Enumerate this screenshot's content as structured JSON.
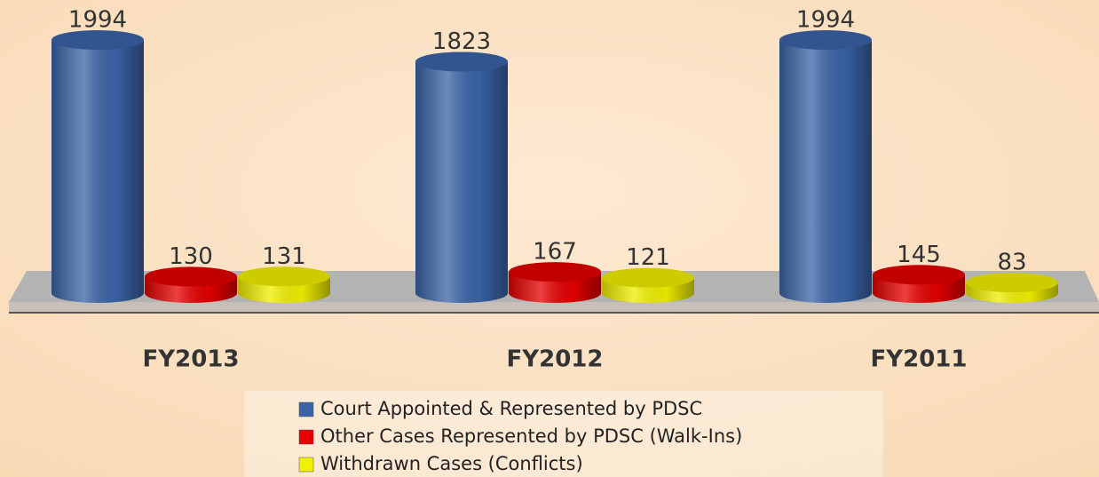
{
  "chart_data": {
    "type": "bar",
    "categories": [
      "FY2013",
      "FY2012",
      "FY2011"
    ],
    "series": [
      {
        "name": "Court Appointed & Represented by PDSC",
        "color": "#3b64a8",
        "values": [
          1994,
          1823,
          1994
        ]
      },
      {
        "name": "Other Cases Represented by PDSC (Walk-Ins)",
        "color": "#e60000",
        "values": [
          130,
          167,
          145
        ]
      },
      {
        "name": "Withdrawn Cases (Conflicts)",
        "color": "#f0f000",
        "values": [
          131,
          121,
          83
        ]
      }
    ],
    "legend": "bottom"
  }
}
